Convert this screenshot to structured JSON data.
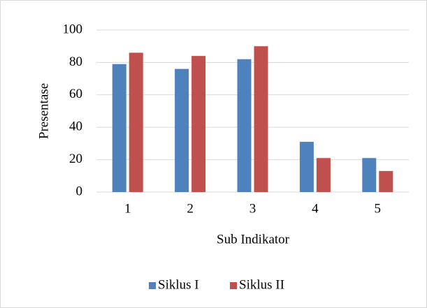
{
  "chart_data": {
    "type": "bar",
    "categories": [
      "1",
      "2",
      "3",
      "4",
      "5"
    ],
    "series": [
      {
        "name": "Siklus I",
        "color": "#4f81bd",
        "values": [
          79,
          76,
          82,
          31,
          21
        ]
      },
      {
        "name": "Siklus II",
        "color": "#c0504d",
        "values": [
          86,
          84,
          90,
          21,
          13
        ]
      }
    ],
    "ylim": [
      0,
      100
    ],
    "yticks": [
      0,
      20,
      40,
      60,
      80,
      100
    ],
    "grid": true,
    "xlabel": "Sub Indikator",
    "ylabel": "Presentase",
    "legend": "bottom"
  }
}
